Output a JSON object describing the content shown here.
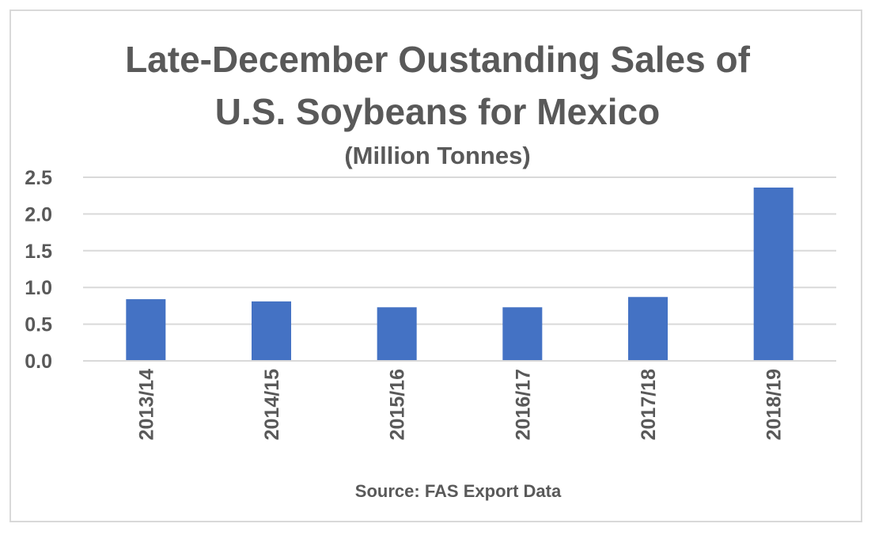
{
  "chart_data": {
    "type": "bar",
    "title_lines": [
      "Late-December Oustanding Sales of",
      "U.S. Soybeans for Mexico"
    ],
    "subtitle": "(Million Tonnes)",
    "xlabel": "Source: FAS Export Data",
    "ylabel": "",
    "categories": [
      "2013/14",
      "2014/15",
      "2015/16",
      "2016/17",
      "2017/18",
      "2018/19"
    ],
    "values": [
      0.84,
      0.81,
      0.73,
      0.73,
      0.87,
      2.36
    ],
    "ylim": [
      0.0,
      2.5
    ],
    "yticks": [
      "0.0",
      "0.5",
      "1.0",
      "1.5",
      "2.0",
      "2.5"
    ],
    "grid": true,
    "legend": "none",
    "colors": {
      "bar": "#4472c4",
      "grid": "#d9d9d9",
      "text": "#595959",
      "border": "#d9d9d9"
    }
  }
}
